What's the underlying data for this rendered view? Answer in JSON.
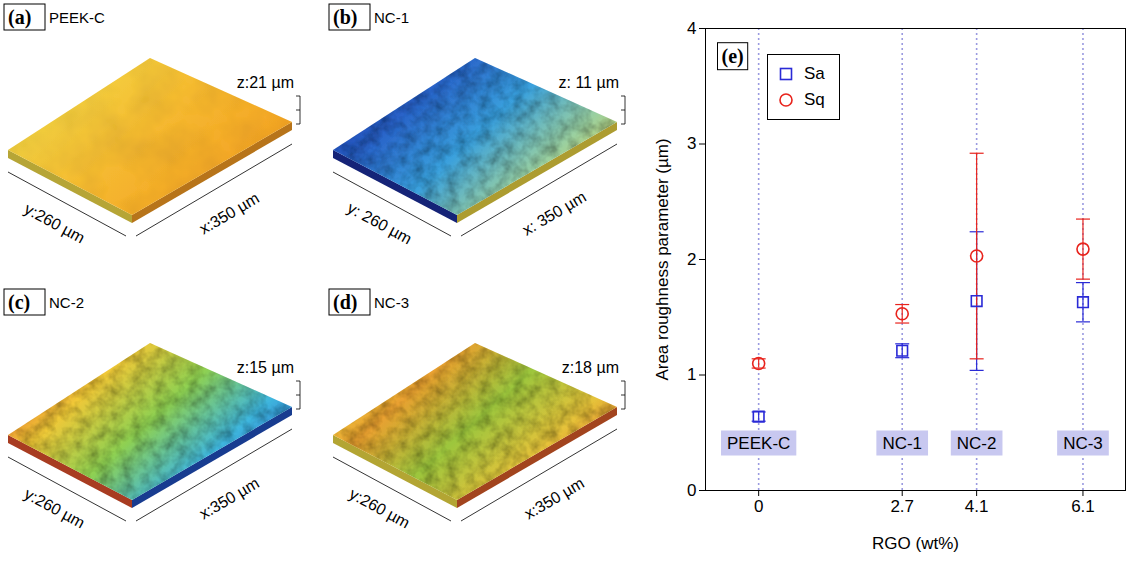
{
  "chart_data": [
    {
      "type": "surface",
      "label": "(a)",
      "title": "PEEK-C",
      "z_label": "z:21 µm",
      "x_label": "x:350 µm",
      "y_label": "y:260 µm"
    },
    {
      "type": "surface",
      "label": "(b)",
      "title": "NC-1",
      "z_label": "z: 11 µm",
      "x_label": "x: 350 µm",
      "y_label": "y: 260 µm"
    },
    {
      "type": "surface",
      "label": "(c)",
      "title": "NC-2",
      "z_label": "z:15 µm",
      "x_label": "x:350 µm",
      "y_label": "y:260 µm"
    },
    {
      "type": "surface",
      "label": "(d)",
      "title": "NC-3",
      "z_label": "z:18 µm",
      "x_label": "x:350 µm",
      "y_label": "y:260 µm"
    },
    {
      "type": "scatter",
      "label": "(e)",
      "x_label": "RGO (wt%)",
      "y_label": "Area roughness parameter (µm)",
      "x": [
        0,
        2.7,
        4.1,
        6.1
      ],
      "categories": [
        "PEEK-C",
        "NC-1",
        "NC-2",
        "NC-3"
      ],
      "series": [
        {
          "name": "Sa",
          "color": "#2a2ad6",
          "marker": "square",
          "values": [
            0.64,
            1.21,
            1.64,
            1.63
          ],
          "error": [
            0.04,
            0.06,
            0.6,
            0.17
          ]
        },
        {
          "name": "Sq",
          "color": "#e8231c",
          "marker": "circle",
          "values": [
            1.1,
            1.53,
            2.03,
            2.09
          ],
          "error": [
            0.04,
            0.08,
            0.89,
            0.26
          ]
        }
      ],
      "xlim": [
        -1,
        6.9
      ],
      "xticks": [
        0,
        2.7,
        4.1,
        6.1
      ],
      "ylim": [
        0,
        4
      ],
      "yticks": [
        0,
        1,
        2,
        3,
        4
      ],
      "grid": true,
      "legend": "top-left"
    }
  ]
}
